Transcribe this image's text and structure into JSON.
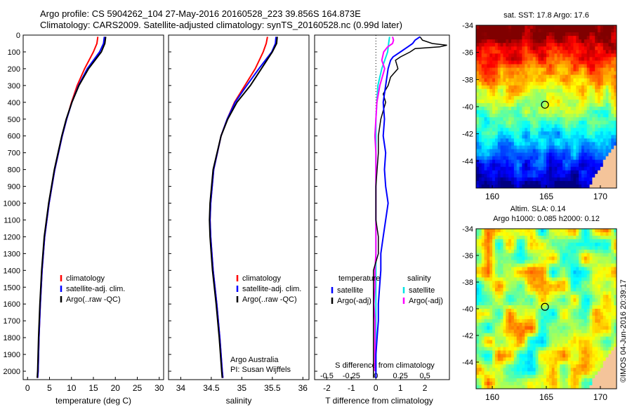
{
  "header": {
    "line1": "Argo profile: CS 5904262_104 27-May-2016 20160528_223 39.856S 164.873E",
    "line2": "Climatology: CARS2009. Satellite-adjusted climatology: synTS_20160528.nc (0.99d later)"
  },
  "colors": {
    "climatology": "#ff0000",
    "satellite": "#0000ff",
    "argo": "#000000",
    "salinity_satellite": "#00e5e5",
    "salinity_argo": "#ff00ff",
    "land": "#f4c49a"
  },
  "chart_data": [
    {
      "type": "line",
      "panel": "temperature",
      "xlabel": "temperature (deg C)",
      "xlim": [
        -1,
        31
      ],
      "xticks": [
        "0",
        "5",
        "10",
        "15",
        "20",
        "25",
        "30"
      ],
      "ylim": [
        0,
        2050
      ],
      "yticks": [
        "0",
        "100",
        "200",
        "300",
        "400",
        "500",
        "600",
        "700",
        "800",
        "900",
        "1000",
        "1100",
        "1200",
        "1300",
        "1400",
        "1500",
        "1600",
        "1700",
        "1800",
        "1900",
        "2000"
      ],
      "legend": [
        "climatology",
        "satellite-adj. clim.",
        "Argo(..raw -QC)"
      ],
      "series": [
        {
          "name": "climatology",
          "depth": [
            10,
            50,
            100,
            200,
            300,
            400,
            500,
            600,
            800,
            1000,
            1200,
            1400,
            1600,
            1800,
            2000,
            2040
          ],
          "values": [
            16.0,
            15.8,
            15.0,
            13.0,
            11.3,
            10.0,
            8.9,
            7.9,
            6.2,
            4.9,
            3.9,
            3.3,
            2.9,
            2.6,
            2.4,
            2.3
          ]
        },
        {
          "name": "satellite-adj. clim.",
          "depth": [
            10,
            50,
            100,
            200,
            300,
            400,
            500,
            600,
            800,
            1000,
            1200,
            1400,
            1600,
            1800,
            2000,
            2040
          ],
          "values": [
            17.5,
            17.3,
            16.4,
            13.6,
            11.6,
            10.1,
            8.9,
            7.9,
            6.2,
            4.9,
            3.9,
            3.3,
            2.9,
            2.6,
            2.4,
            2.3
          ]
        },
        {
          "name": "Argo(..raw -QC)",
          "depth": [
            10,
            50,
            100,
            200,
            300,
            400,
            500,
            600,
            800,
            1000,
            1200,
            1400,
            1600,
            1800,
            2000,
            2040
          ],
          "values": [
            17.8,
            17.6,
            16.8,
            13.9,
            11.7,
            10.1,
            8.8,
            7.8,
            6.1,
            4.8,
            3.8,
            3.2,
            2.8,
            2.5,
            2.3,
            2.2
          ]
        }
      ]
    },
    {
      "type": "line",
      "panel": "salinity",
      "xlabel": "salinity",
      "xlim": [
        33.8,
        36.1
      ],
      "xticks": [
        "34",
        "34.5",
        "35",
        "35.5",
        "36"
      ],
      "ylim": [
        0,
        2050
      ],
      "legend": [
        "climatology",
        "satellite-adj. clim.",
        "Argo(..raw -QC)"
      ],
      "annotation": [
        "Argo Australia",
        "PI: Susan Wijffels"
      ],
      "series": [
        {
          "name": "climatology",
          "depth": [
            10,
            50,
            100,
            200,
            300,
            400,
            500,
            600,
            800,
            1000,
            1100,
            1200,
            1400,
            1600,
            1800,
            2000,
            2040
          ],
          "values": [
            35.42,
            35.4,
            35.35,
            35.22,
            35.05,
            34.88,
            34.76,
            34.66,
            34.54,
            34.49,
            34.48,
            34.49,
            34.53,
            34.59,
            34.64,
            34.68,
            34.69
          ]
        },
        {
          "name": "satellite-adj. clim.",
          "depth": [
            10,
            50,
            100,
            200,
            300,
            400,
            500,
            600,
            800,
            1000,
            1100,
            1200,
            1400,
            1600,
            1800,
            2000,
            2040
          ],
          "values": [
            35.56,
            35.55,
            35.49,
            35.28,
            35.08,
            34.89,
            34.76,
            34.66,
            34.54,
            34.49,
            34.48,
            34.49,
            34.53,
            34.59,
            34.64,
            34.68,
            34.69
          ]
        },
        {
          "name": "Argo(..raw -QC)",
          "depth": [
            10,
            50,
            100,
            200,
            300,
            400,
            500,
            600,
            800,
            1000,
            1100,
            1200,
            1400,
            1600,
            1800,
            2000,
            2040
          ],
          "values": [
            35.58,
            35.57,
            35.5,
            35.32,
            35.14,
            34.92,
            34.77,
            34.66,
            34.53,
            34.48,
            34.47,
            34.48,
            34.52,
            34.58,
            34.63,
            34.67,
            34.68
          ]
        }
      ]
    },
    {
      "type": "line",
      "panel": "difference",
      "xlabel": "T difference from climatology",
      "xlabel_top": "S difference from climatology",
      "xlim": [
        -2.5,
        3.0
      ],
      "xticks_T": [
        "-2",
        "-1",
        "0",
        "1",
        "2"
      ],
      "xticks_S": [
        "-0.5",
        "-0.25",
        "0",
        "0.25",
        "0.5"
      ],
      "ylim": [
        0,
        2050
      ],
      "legend_left_title": "temperature",
      "legend_right_title": "salinity",
      "legend_left": [
        "satellite",
        "Argo(-adj)"
      ],
      "legend_right": [
        "satellite",
        "Argo(-adj)"
      ],
      "series": [
        {
          "name": "temperature satellite",
          "depth": [
            10,
            30,
            50,
            70,
            100,
            130,
            150,
            200,
            300,
            400,
            500,
            600,
            700,
            800,
            900,
            1000,
            1100,
            1200,
            1300,
            1400,
            1500,
            1600,
            1700,
            1800,
            1900,
            2000,
            2040
          ],
          "values": [
            1.8,
            1.6,
            1.5,
            1.3,
            1.0,
            0.7,
            0.6,
            0.5,
            0.4,
            0.3,
            0.35,
            0.3,
            0.4,
            0.35,
            0.4,
            0.5,
            0.4,
            0.3,
            0.2,
            0.2,
            0.15,
            0.1,
            0.1,
            0.05,
            0.0,
            0.0,
            0.0
          ]
        },
        {
          "name": "temperature Argo(-adj)",
          "depth": [
            10,
            30,
            50,
            60,
            70,
            80,
            100,
            130,
            150,
            200,
            250,
            300,
            350,
            400,
            450,
            500,
            600,
            700,
            800,
            900,
            1000,
            1100,
            1200,
            1300,
            1400,
            1500,
            1600,
            1700,
            1800,
            1900,
            2000,
            2040
          ],
          "values": [
            1.8,
            1.9,
            2.3,
            2.9,
            2.6,
            1.6,
            1.4,
            1.0,
            0.8,
            0.9,
            0.6,
            0.5,
            0.3,
            0.4,
            0.3,
            0.2,
            0.1,
            0.1,
            0.05,
            0.0,
            0.0,
            0.0,
            0.1,
            0.1,
            -0.1,
            -0.1,
            -0.1,
            -0.1,
            -0.1,
            -0.1,
            -0.1,
            -0.1
          ]
        },
        {
          "name": "salinity satellite",
          "depth": [
            10,
            50,
            100,
            200,
            300,
            400,
            500,
            600,
            700,
            800,
            900,
            1000,
            1100,
            1200,
            1300,
            1400,
            1500,
            1600,
            1700,
            1800,
            1900,
            2000
          ],
          "values": [
            0.14,
            0.13,
            0.12,
            0.06,
            0.02,
            0.01,
            0.0,
            0.0,
            0.0,
            0.0,
            0.0,
            0.0,
            0.0,
            0.0,
            0.0,
            0.0,
            0.0,
            0.0,
            0.0,
            0.0,
            0.0,
            0.0
          ]
        },
        {
          "name": "salinity Argo(-adj)",
          "depth": [
            10,
            30,
            50,
            70,
            100,
            150,
            200,
            300,
            400,
            500,
            600,
            700,
            800,
            900,
            1000,
            1100,
            1200,
            1300,
            1400,
            1500,
            1600,
            1700,
            1800,
            1900,
            2000
          ],
          "values": [
            0.17,
            0.18,
            0.17,
            0.12,
            0.08,
            0.06,
            0.09,
            0.04,
            0.01,
            0.0,
            -0.01,
            0.0,
            0.0,
            0.0,
            0.0,
            0.0,
            0.0,
            0.0,
            -0.01,
            -0.01,
            -0.02,
            -0.01,
            -0.01,
            -0.01,
            -0.01
          ]
        }
      ]
    },
    {
      "type": "heatmap",
      "panel": "sst_map",
      "title": "sat. SST: 17.8 Argo: 17.6",
      "xlim": [
        158.5,
        171.5
      ],
      "ylim": [
        -46,
        -34
      ],
      "xticks": [
        "160",
        "165",
        "170"
      ],
      "yticks": [
        "-34",
        "-36",
        "-38",
        "-40",
        "-42",
        "-44"
      ],
      "marker": {
        "lon": 164.873,
        "lat": -39.856
      }
    },
    {
      "type": "heatmap",
      "panel": "sla_map",
      "title_line1": "Altim. SLA: 0.14",
      "title_line2": "Argo h1000: 0.085 h2000: 0.12",
      "xlim": [
        158.5,
        171.5
      ],
      "ylim": [
        -46,
        -34
      ],
      "xticks": [
        "160",
        "165",
        "170"
      ],
      "yticks": [
        "-34",
        "-36",
        "-38",
        "-40",
        "-42",
        "-44"
      ],
      "marker": {
        "lon": 164.873,
        "lat": -39.856
      }
    }
  ],
  "footer": {
    "stamp": "©IMOS 04-Jun-2016 20:39:17"
  }
}
